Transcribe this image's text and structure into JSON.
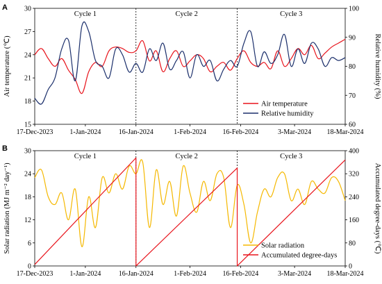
{
  "chart_data": [
    {
      "panel": "A",
      "type": "line",
      "x_ticks": [
        "17-Dec-2023",
        "1-Jan-2024",
        "16-Jan-2024",
        "1-Feb-2024",
        "16-Feb-2024",
        "3-Mar-2024",
        "18-Mar-2024"
      ],
      "x_tick_days": [
        0,
        15,
        30,
        46,
        61,
        77,
        92
      ],
      "ylabel_left": "Air temperature (℃)",
      "ylim_left": [
        15,
        30
      ],
      "yticks_left": [
        15,
        18,
        21,
        24,
        27,
        30
      ],
      "ylabel_right": "Relative humidity  (%)",
      "ylim_right": [
        60,
        100
      ],
      "yticks_right": [
        60,
        70,
        80,
        90,
        100
      ],
      "cycles": [
        {
          "label": "Cycle 1",
          "center_day": 15
        },
        {
          "label": "Cycle 2",
          "center_day": 45
        },
        {
          "label": "Cycle 3",
          "center_day": 76
        }
      ],
      "cycle_boundaries_day": [
        30,
        60
      ],
      "legend_position": "bottom-right",
      "series": [
        {
          "name": "Air temperature",
          "axis": "left",
          "color": "#e8141c",
          "x": [
            0,
            2,
            4,
            6,
            8,
            10,
            12,
            14,
            16,
            18,
            20,
            22,
            24,
            26,
            28,
            30,
            32,
            34,
            36,
            38,
            40,
            42,
            44,
            46,
            48,
            50,
            52,
            54,
            56,
            58,
            60,
            62,
            64,
            66,
            68,
            70,
            72,
            74,
            76,
            78,
            80,
            82,
            84,
            86,
            88,
            90,
            92
          ],
          "y": [
            24.0,
            24.8,
            23.5,
            22.5,
            23.5,
            22.0,
            20.8,
            19.0,
            21.8,
            23.0,
            22.5,
            24.5,
            25.0,
            24.8,
            24.3,
            24.5,
            25.8,
            23.2,
            24.5,
            21.8,
            23.5,
            24.5,
            22.5,
            23.2,
            24.0,
            23.5,
            21.8,
            22.5,
            23.0,
            22.0,
            23.5,
            24.5,
            23.0,
            22.5,
            23.0,
            22.2,
            24.5,
            22.5,
            23.5,
            24.8,
            24.0,
            25.2,
            23.5,
            24.2,
            25.0,
            25.5,
            26.0
          ]
        },
        {
          "name": "Relative humidity",
          "axis": "right",
          "color": "#1b2f6b",
          "x": [
            0,
            2,
            4,
            6,
            8,
            10,
            12,
            14,
            16,
            18,
            20,
            22,
            24,
            26,
            28,
            30,
            32,
            34,
            36,
            38,
            40,
            42,
            44,
            46,
            48,
            50,
            52,
            54,
            56,
            58,
            60,
            62,
            64,
            66,
            68,
            70,
            72,
            74,
            76,
            78,
            80,
            82,
            84,
            86,
            88,
            90,
            92
          ],
          "y": [
            69,
            67,
            72,
            76,
            86,
            89,
            75,
            94,
            92,
            82,
            80,
            76,
            86,
            84,
            78,
            81,
            78,
            86,
            82,
            88,
            79,
            82,
            85,
            76,
            84,
            80,
            82,
            75,
            79,
            82,
            80,
            88,
            92,
            80,
            85,
            81,
            84,
            91,
            80,
            86,
            81,
            88,
            86,
            80,
            83,
            82,
            83
          ]
        }
      ]
    },
    {
      "panel": "B",
      "type": "line",
      "x_ticks": [
        "17-Dec-2023",
        "1-Jan-2024",
        "16-Jan-2024",
        "1-Feb-2024",
        "16-Feb-2024",
        "3-Mar-2024",
        "18-Mar-2024"
      ],
      "x_tick_days": [
        0,
        15,
        30,
        46,
        61,
        77,
        92
      ],
      "ylabel_left": "Solar radiation (MJ m⁻² day⁻¹)",
      "ylim_left": [
        0,
        30
      ],
      "yticks_left": [
        0,
        6,
        12,
        18,
        24,
        30
      ],
      "ylabel_right": "Accumulated degree-days (℃)",
      "ylim_right": [
        0,
        400
      ],
      "yticks_right": [
        0,
        80,
        160,
        240,
        320,
        400
      ],
      "cycles": [
        {
          "label": "Cycle 1",
          "center_day": 15
        },
        {
          "label": "Cycle 2",
          "center_day": 45
        },
        {
          "label": "Cycle 3",
          "center_day": 76
        }
      ],
      "cycle_boundaries_day": [
        30,
        60
      ],
      "legend_position": "bottom-right",
      "series": [
        {
          "name": "Solar radiation",
          "axis": "left",
          "color": "#f5b800",
          "x": [
            0,
            2,
            4,
            6,
            8,
            10,
            12,
            14,
            16,
            18,
            20,
            22,
            24,
            26,
            28,
            30,
            32,
            34,
            36,
            38,
            40,
            42,
            44,
            46,
            48,
            50,
            52,
            54,
            56,
            58,
            60,
            62,
            64,
            66,
            68,
            70,
            72,
            74,
            76,
            78,
            80,
            82,
            84,
            86,
            88,
            90,
            92
          ],
          "y": [
            23,
            25,
            18,
            16,
            19,
            12,
            20,
            5,
            18,
            10,
            23,
            19,
            24,
            20,
            26,
            24,
            27,
            10,
            25,
            16,
            22,
            13,
            26,
            19,
            14,
            22,
            17,
            24,
            23,
            10,
            21,
            16,
            6,
            14,
            20,
            18,
            23,
            24,
            17,
            20,
            16,
            22,
            20,
            19,
            23,
            22,
            17
          ]
        },
        {
          "name": "Accumulated degree-days",
          "axis": "right",
          "color": "#e8141c",
          "x": [
            0,
            30,
            30.01,
            60,
            60.01,
            92
          ],
          "y": [
            5,
            375,
            0,
            340,
            0,
            368
          ]
        }
      ]
    }
  ]
}
